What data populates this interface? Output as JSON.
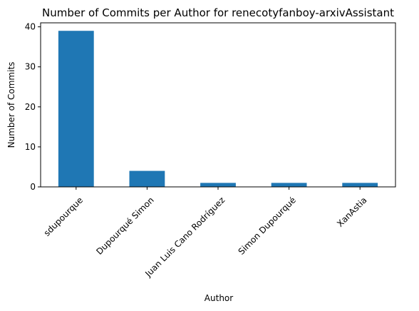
{
  "chart_data": {
    "type": "bar",
    "title": "Number of Commits per Author for renecotyfanboy-arxivAssistant",
    "xlabel": "Author",
    "ylabel": "Number of Commits",
    "categories": [
      "sdupourque",
      "Dupourqué Simon",
      "Juan Luis Cano Rodríguez",
      "Simon Dupourqué",
      "XanAstia"
    ],
    "values": [
      39,
      4,
      1,
      1,
      1
    ],
    "ylim": [
      0,
      41
    ],
    "yticks": [
      0,
      10,
      20,
      30,
      40
    ],
    "grid": false,
    "bar_color": "#1f77b4"
  }
}
